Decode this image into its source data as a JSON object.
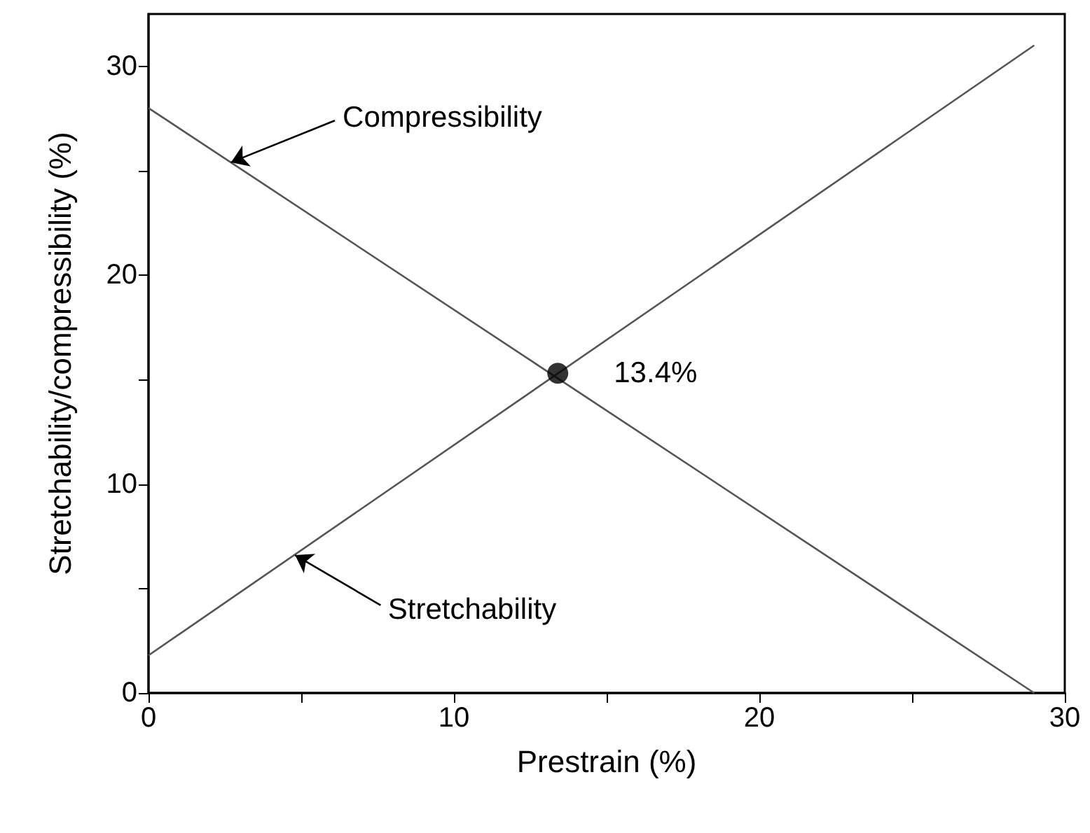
{
  "chart_data": {
    "type": "line",
    "xlabel": "Prestrain (%)",
    "ylabel": "Stretchability/compressibility (%)",
    "xlim": [
      0,
      30
    ],
    "xticks": [
      0,
      {
        "value": 5,
        "label": null
      },
      10,
      {
        "value": 15,
        "label": null
      },
      20,
      {
        "value": 25,
        "label": null
      },
      30
    ],
    "ylim": [
      0,
      32.5
    ],
    "yticks": [
      0,
      {
        "value": 5,
        "label": null
      },
      10,
      {
        "value": 15,
        "label": null
      },
      20,
      {
        "value": 25,
        "label": null
      },
      30
    ],
    "grid": false,
    "series": [
      {
        "type": "line",
        "color": "#555555",
        "marker": "none",
        "x": [
          0,
          29
        ],
        "values": [
          28,
          0
        ]
      },
      {
        "type": "line",
        "color": "#555555",
        "marker": "none",
        "x": [
          0,
          29
        ],
        "values": [
          1.8,
          31
        ]
      },
      {
        "type": "scatter",
        "color": "#000000",
        "marker": "circle",
        "x": [
          13.4
        ],
        "values": [
          15.3
        ]
      }
    ],
    "annotations": [
      {
        "text": "Compressibility",
        "x": 2.7,
        "y": 25.4
      },
      {
        "text": "Stretchability",
        "x": 4.8,
        "y": 6.6
      },
      {
        "text": "13.4%",
        "x": 13.4,
        "y": 15.3
      }
    ]
  }
}
